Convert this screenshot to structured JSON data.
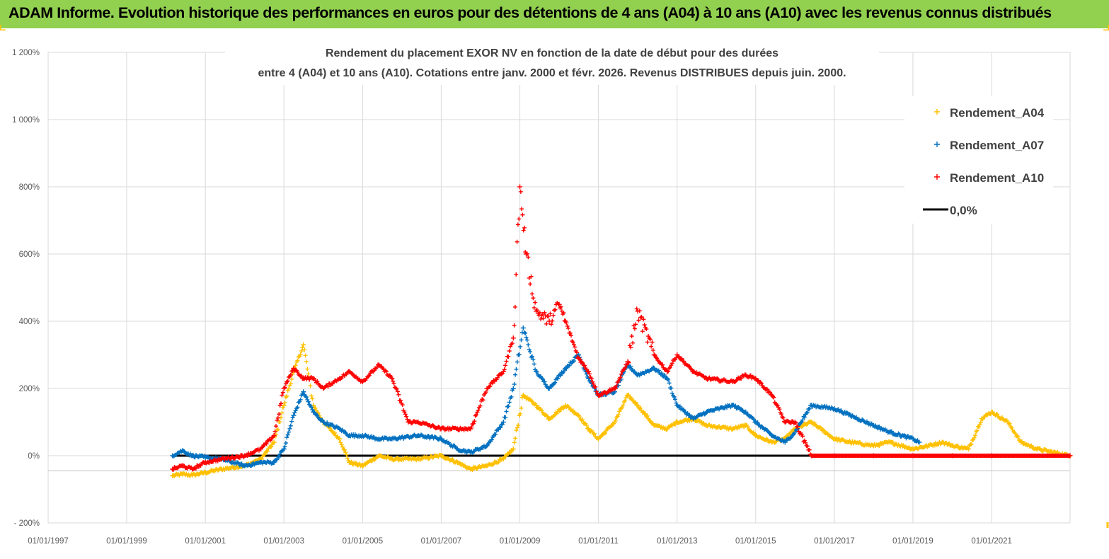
{
  "header": {
    "title": "ADAM Informe. Evolution historique des performances en euros pour des détentions de 4 ans (A04) à 10 ans (A10) avec les revenus connus distribués"
  },
  "colors": {
    "header_bg": "#92d050",
    "A04": "#ffc000",
    "A07": "#0070c0",
    "A10": "#ff0000",
    "zero_line": "#000000",
    "corner_marks": "#ffc000"
  },
  "chart_data": {
    "type": "scatter",
    "title_line1": "Rendement du placement EXOR NV en fonction de la date de début pour des durées",
    "title_line2": "entre 4 (A04) et 10 ans (A10).  Cotations entre janv. 2000 et févr. 2026. Revenus DISTRIBUES depuis juin. 2000.",
    "y_axis": {
      "min": -200,
      "max": 1200,
      "step": 200,
      "unit": "%",
      "tick_labels": [
        "- 200%",
        "0%",
        "200%",
        "400%",
        "600%",
        "800%",
        "1 000%",
        "1 200%"
      ]
    },
    "x_axis": {
      "min": "1997-01-01",
      "max": "2022-12-31",
      "tick_labels": [
        "01/01/1997",
        "01/01/1999",
        "01/01/2001",
        "01/01/2003",
        "01/01/2005",
        "01/01/2007",
        "01/01/2009",
        "01/01/2011",
        "01/01/2013",
        "01/01/2015",
        "01/01/2017",
        "01/01/2019",
        "01/01/2021"
      ]
    },
    "grid": true,
    "legend": {
      "position": "top-right",
      "entries": [
        "Rendement_A04",
        "Rendement_A07",
        "Rendement_A10",
        "0,0%"
      ]
    },
    "series": [
      {
        "name": "Rendement_A04",
        "marker": "+",
        "x": [
          "2000-03-01",
          "2000-06-01",
          "2000-09-01",
          "2001-01-01",
          "2001-06-01",
          "2002-01-01",
          "2002-06-01",
          "2002-10-01",
          "2003-01-01",
          "2003-04-01",
          "2003-07-01",
          "2003-10-01",
          "2004-01-01",
          "2004-06-01",
          "2004-09-01",
          "2005-01-01",
          "2005-06-01",
          "2005-10-01",
          "2006-06-01",
          "2007-01-01",
          "2007-06-01",
          "2007-10-01",
          "2008-03-01",
          "2008-08-01",
          "2008-11-01",
          "2009-02-01",
          "2009-06-01",
          "2009-10-01",
          "2010-03-01",
          "2010-07-01",
          "2010-10-01",
          "2011-01-01",
          "2011-06-01",
          "2011-10-01",
          "2012-01-01",
          "2012-06-01",
          "2012-10-01",
          "2013-01-01",
          "2013-06-01",
          "2013-10-01",
          "2014-06-01",
          "2014-10-01",
          "2015-01-01",
          "2015-06-01",
          "2015-10-01",
          "2016-01-01",
          "2016-06-01",
          "2017-01-01",
          "2017-06-01",
          "2018-01-01",
          "2018-06-01",
          "2019-01-01",
          "2019-06-01",
          "2019-10-01",
          "2020-01-01",
          "2020-06-01",
          "2020-10-01",
          "2021-01-01",
          "2021-06-01",
          "2021-10-01",
          "2022-03-01",
          "2022-12-31"
        ],
        "y": [
          -60,
          -55,
          -58,
          -50,
          -40,
          -30,
          -10,
          40,
          150,
          250,
          330,
          150,
          100,
          50,
          -20,
          -30,
          0,
          -10,
          -10,
          0,
          -20,
          -40,
          -30,
          -10,
          20,
          180,
          150,
          110,
          150,
          120,
          80,
          50,
          100,
          180,
          150,
          90,
          80,
          100,
          110,
          90,
          80,
          90,
          60,
          40,
          50,
          80,
          100,
          50,
          40,
          30,
          40,
          20,
          30,
          40,
          30,
          20,
          110,
          130,
          100,
          40,
          20,
          0
        ]
      },
      {
        "name": "Rendement_A07",
        "marker": "+",
        "x": [
          "2000-03-01",
          "2000-06-01",
          "2000-09-01",
          "2001-01-01",
          "2001-06-01",
          "2002-01-01",
          "2002-06-01",
          "2002-10-01",
          "2003-01-01",
          "2003-04-01",
          "2003-07-01",
          "2003-10-01",
          "2004-01-01",
          "2004-06-01",
          "2004-09-01",
          "2005-01-01",
          "2005-06-01",
          "2005-10-01",
          "2006-06-01",
          "2007-01-01",
          "2007-06-01",
          "2007-10-01",
          "2008-03-01",
          "2008-08-01",
          "2008-11-01",
          "2009-02-01",
          "2009-06-01",
          "2009-10-01",
          "2010-03-01",
          "2010-07-01",
          "2010-10-01",
          "2011-01-01",
          "2011-06-01",
          "2011-10-01",
          "2012-01-01",
          "2012-06-01",
          "2012-10-01",
          "2013-01-01",
          "2013-06-01",
          "2013-10-01",
          "2014-06-01",
          "2014-10-01",
          "2015-01-01",
          "2015-06-01",
          "2015-10-01",
          "2016-01-01",
          "2016-06-01",
          "2017-01-01",
          "2017-06-01",
          "2018-01-01",
          "2018-06-01",
          "2019-01-01",
          "2019-03-01"
        ],
        "y": [
          0,
          15,
          0,
          -5,
          -10,
          -30,
          -20,
          -20,
          20,
          120,
          190,
          130,
          100,
          80,
          60,
          60,
          50,
          50,
          60,
          50,
          20,
          10,
          30,
          100,
          200,
          380,
          250,
          200,
          260,
          300,
          230,
          180,
          190,
          270,
          240,
          260,
          230,
          150,
          110,
          130,
          150,
          130,
          100,
          60,
          40,
          70,
          150,
          140,
          120,
          90,
          70,
          50,
          40
        ]
      },
      {
        "name": "Rendement_A10",
        "marker": "+",
        "x": [
          "2000-03-01",
          "2000-06-01",
          "2000-09-01",
          "2001-01-01",
          "2001-06-01",
          "2002-01-01",
          "2002-06-01",
          "2002-10-01",
          "2003-01-01",
          "2003-04-01",
          "2003-07-01",
          "2003-10-01",
          "2004-01-01",
          "2004-06-01",
          "2004-09-01",
          "2005-01-01",
          "2005-06-01",
          "2005-10-01",
          "2006-03-01",
          "2006-06-01",
          "2007-01-01",
          "2007-06-01",
          "2007-10-01",
          "2008-03-01",
          "2008-08-01",
          "2008-11-01",
          "2009-01-01",
          "2009-03-01",
          "2009-06-01",
          "2009-10-01",
          "2010-01-01",
          "2010-03-01",
          "2010-07-01",
          "2010-10-01",
          "2011-01-01",
          "2011-06-01",
          "2011-10-01",
          "2012-01-01",
          "2012-06-01",
          "2012-10-01",
          "2013-01-01",
          "2013-06-01",
          "2013-10-01",
          "2014-06-01",
          "2014-10-01",
          "2015-01-01",
          "2015-06-01",
          "2015-10-01",
          "2016-01-01",
          "2016-06-01",
          "2017-01-01",
          "2018-01-01",
          "2019-01-01",
          "2020-01-01",
          "2021-01-01",
          "2022-12-31"
        ],
        "y": [
          -40,
          -30,
          -40,
          -20,
          -10,
          0,
          20,
          60,
          200,
          260,
          230,
          230,
          200,
          230,
          250,
          220,
          270,
          230,
          100,
          100,
          80,
          80,
          80,
          200,
          250,
          350,
          800,
          600,
          430,
          400,
          450,
          400,
          290,
          250,
          180,
          200,
          280,
          430,
          300,
          250,
          300,
          250,
          230,
          220,
          240,
          230,
          180,
          100,
          100,
          0,
          0,
          0,
          0,
          0,
          0,
          0
        ]
      },
      {
        "name": "0,0%",
        "type": "line",
        "x": [
          "2000-03-01",
          "2022-12-31"
        ],
        "y": [
          0,
          0
        ]
      }
    ]
  }
}
